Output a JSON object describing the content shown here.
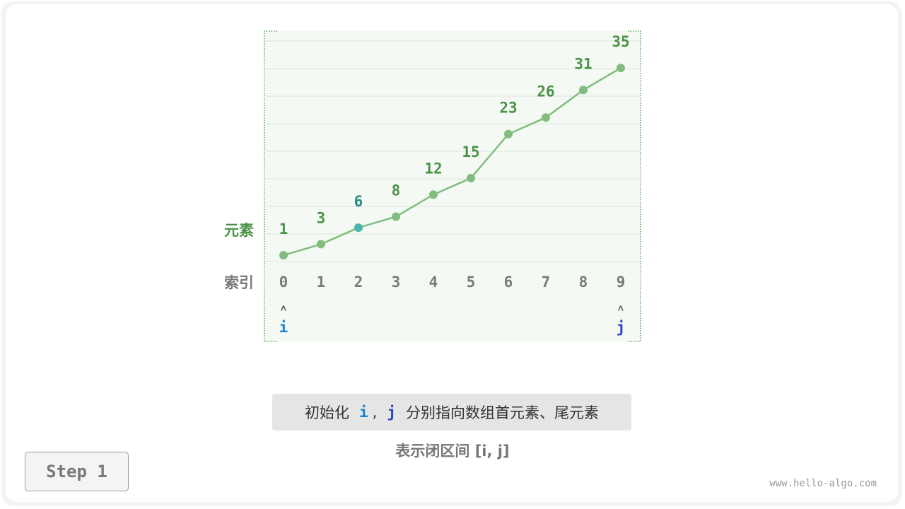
{
  "diagram": {
    "values": [
      1,
      3,
      6,
      8,
      12,
      15,
      23,
      26,
      31,
      35
    ],
    "indices": [
      "0",
      "1",
      "2",
      "3",
      "4",
      "5",
      "6",
      "7",
      "8",
      "9"
    ],
    "highlight_index": 2,
    "element_label": "元素",
    "index_label": "索引",
    "pointer_i": {
      "label": "i",
      "index": 0,
      "arrow": "˄"
    },
    "pointer_j": {
      "label": "j",
      "index": 9,
      "arrow": "˄"
    },
    "colors": {
      "line": "#82bd7f",
      "value_text": "#4a9346",
      "highlight": "#4db6ac",
      "highlight_text": "#2e8a80",
      "index_text": "#7a7a7a",
      "i": "#1a83d1",
      "j": "#2a46c8",
      "panel": "#f4f9f4",
      "border": "#5aa85a"
    }
  },
  "message": {
    "prefix": "初始化",
    "i": "i",
    "comma": ",",
    "j": "j",
    "suffix": "分别指向数组首元素、尾元素"
  },
  "note": "表示闭区间 [i, j]",
  "step": "Step 1",
  "watermark": "www.hello-algo.com"
}
